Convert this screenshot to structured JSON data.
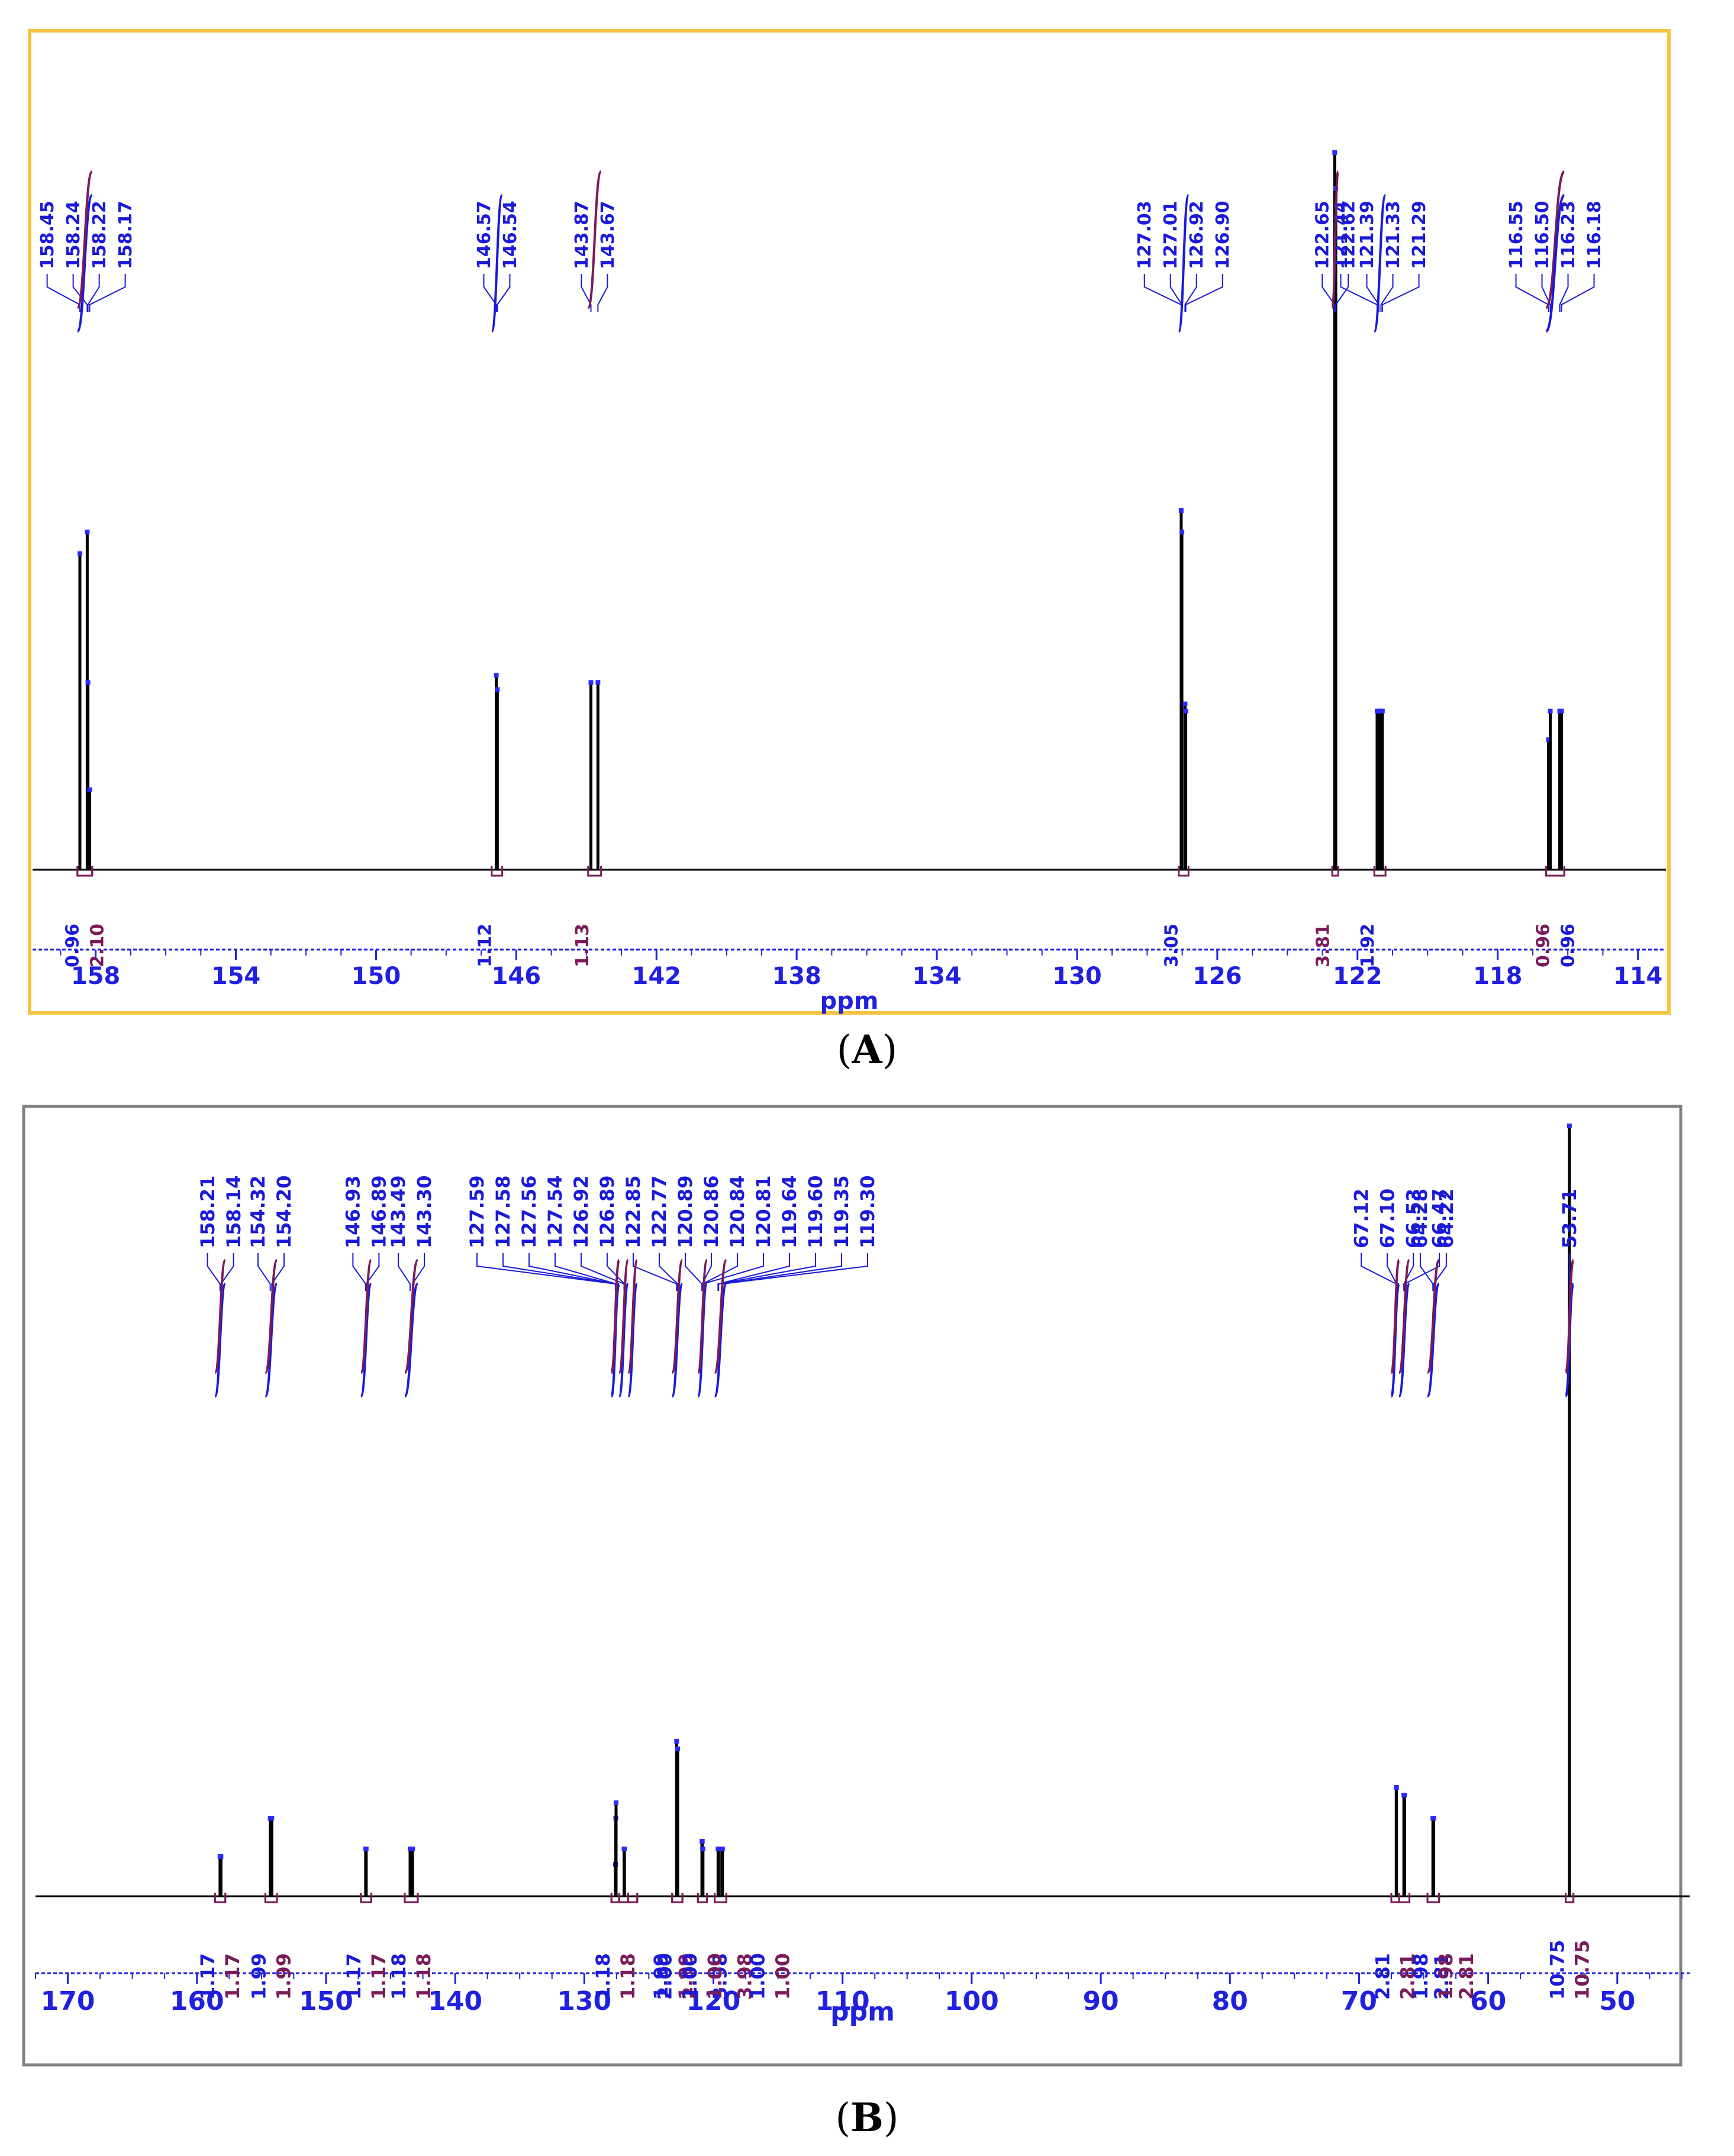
{
  "colors": {
    "frame_a": "#f5c342",
    "frame_b": "#808080",
    "peak": "#000000",
    "peak_top": "#2a2aff",
    "axis": "#2020e0",
    "peak_label": "#1a1ad8",
    "integral": "#7a1a5a",
    "integral_label_blue": "#1a1ad8",
    "baseline": "#000000"
  },
  "captions": {
    "a": "A",
    "b": "B"
  },
  "chart_data": [
    {
      "type": "nmr-spectrum",
      "panel": "A",
      "xlabel": "ppm",
      "xlim": [
        159.8,
        113.2
      ],
      "xticks": [
        158,
        154,
        150,
        146,
        142,
        138,
        134,
        130,
        126,
        122,
        118,
        114
      ],
      "tick_labels": [
        "158",
        "154",
        "150",
        "146",
        "142",
        "138",
        "134",
        "130",
        "126",
        "122",
        "118",
        "114"
      ],
      "peaks": [
        {
          "ppm": 158.45,
          "height": 0.44
        },
        {
          "ppm": 158.24,
          "height": 0.47
        },
        {
          "ppm": 158.22,
          "height": 0.26
        },
        {
          "ppm": 158.17,
          "height": 0.11
        },
        {
          "ppm": 146.57,
          "height": 0.27
        },
        {
          "ppm": 146.54,
          "height": 0.25
        },
        {
          "ppm": 143.87,
          "height": 0.26
        },
        {
          "ppm": 143.67,
          "height": 0.26
        },
        {
          "ppm": 127.03,
          "height": 0.5
        },
        {
          "ppm": 127.01,
          "height": 0.47
        },
        {
          "ppm": 126.92,
          "height": 0.23
        },
        {
          "ppm": 126.9,
          "height": 0.22
        },
        {
          "ppm": 122.65,
          "height": 1.0
        },
        {
          "ppm": 122.62,
          "height": 0.95
        },
        {
          "ppm": 121.44,
          "height": 0.22
        },
        {
          "ppm": 121.39,
          "height": 0.22
        },
        {
          "ppm": 121.33,
          "height": 0.22
        },
        {
          "ppm": 121.29,
          "height": 0.22
        },
        {
          "ppm": 116.55,
          "height": 0.18
        },
        {
          "ppm": 116.5,
          "height": 0.22
        },
        {
          "ppm": 116.23,
          "height": 0.22
        },
        {
          "ppm": 116.18,
          "height": 0.22
        }
      ],
      "peak_label_groups": [
        {
          "labels": [
            "158.45",
            "158.24",
            "158.22",
            "158.17"
          ],
          "ppms": [
            158.45,
            158.24,
            158.22,
            158.17
          ]
        },
        {
          "labels": [
            "146.57",
            "146.54"
          ],
          "ppms": [
            146.57,
            146.54
          ]
        },
        {
          "labels": [
            "143.87",
            "143.67"
          ],
          "ppms": [
            143.87,
            143.67
          ]
        },
        {
          "labels": [
            "127.03",
            "127.01",
            "126.92",
            "126.90"
          ],
          "ppms": [
            127.03,
            127.01,
            126.92,
            126.9
          ]
        },
        {
          "labels": [
            "122.65",
            "122.62"
          ],
          "ppms": [
            122.65,
            122.62
          ]
        },
        {
          "labels": [
            "121.44",
            "121.39",
            "121.33",
            "121.29"
          ],
          "ppms": [
            121.44,
            121.39,
            121.33,
            121.29
          ]
        },
        {
          "labels": [
            "116.55",
            "116.50",
            "116.23",
            "116.18"
          ],
          "ppms": [
            116.55,
            116.5,
            116.23,
            116.18
          ]
        }
      ],
      "integrals": [
        {
          "from": 158.52,
          "to": 158.1,
          "value": 0.96,
          "label": "0.96"
        },
        {
          "from": 158.52,
          "to": 158.1,
          "value": 2.1,
          "label": "2.10"
        },
        {
          "from": 146.7,
          "to": 146.4,
          "value": 1.12,
          "label": "1.12"
        },
        {
          "from": 143.95,
          "to": 143.58,
          "value": 1.13,
          "label": "1.13"
        },
        {
          "from": 127.1,
          "to": 126.82,
          "value": 3.05,
          "label": "3.05"
        },
        {
          "from": 122.72,
          "to": 122.55,
          "value": 3.81,
          "label": "3.81"
        },
        {
          "from": 121.52,
          "to": 121.2,
          "value": 1.92,
          "label": "1.92"
        },
        {
          "from": 116.62,
          "to": 116.1,
          "value": 0.96,
          "label": "0.96"
        },
        {
          "from": 116.62,
          "to": 116.1,
          "value": 0.96,
          "label": "0.96"
        }
      ]
    },
    {
      "type": "nmr-spectrum",
      "panel": "B",
      "xlabel": "ppm",
      "xlim": [
        172.5,
        44.4
      ],
      "xticks": [
        170,
        160,
        150,
        140,
        130,
        120,
        110,
        100,
        90,
        80,
        70,
        60,
        50
      ],
      "tick_labels": [
        "170",
        "160",
        "150",
        "140",
        "130",
        "120",
        "110",
        "100",
        "90",
        "80",
        "70",
        "60",
        "50"
      ],
      "peaks": [
        {
          "ppm": 158.21,
          "height": 0.05
        },
        {
          "ppm": 158.14,
          "height": 0.05
        },
        {
          "ppm": 154.32,
          "height": 0.1
        },
        {
          "ppm": 154.2,
          "height": 0.1
        },
        {
          "ppm": 146.93,
          "height": 0.06
        },
        {
          "ppm": 146.89,
          "height": 0.06
        },
        {
          "ppm": 143.49,
          "height": 0.06
        },
        {
          "ppm": 143.3,
          "height": 0.06
        },
        {
          "ppm": 127.59,
          "height": 0.04
        },
        {
          "ppm": 127.58,
          "height": 0.04
        },
        {
          "ppm": 127.56,
          "height": 0.1
        },
        {
          "ppm": 127.54,
          "height": 0.12
        },
        {
          "ppm": 126.92,
          "height": 0.06
        },
        {
          "ppm": 126.89,
          "height": 0.06
        },
        {
          "ppm": 122.85,
          "height": 0.2
        },
        {
          "ppm": 122.77,
          "height": 0.19
        },
        {
          "ppm": 120.89,
          "height": 0.07
        },
        {
          "ppm": 120.86,
          "height": 0.07
        },
        {
          "ppm": 120.84,
          "height": 0.06
        },
        {
          "ppm": 120.81,
          "height": 0.06
        },
        {
          "ppm": 119.64,
          "height": 0.06
        },
        {
          "ppm": 119.6,
          "height": 0.06
        },
        {
          "ppm": 119.35,
          "height": 0.06
        },
        {
          "ppm": 119.3,
          "height": 0.06
        },
        {
          "ppm": 67.12,
          "height": 0.14
        },
        {
          "ppm": 67.1,
          "height": 0.14
        },
        {
          "ppm": 66.53,
          "height": 0.13
        },
        {
          "ppm": 66.47,
          "height": 0.13
        },
        {
          "ppm": 64.28,
          "height": 0.1
        },
        {
          "ppm": 64.22,
          "height": 0.1
        },
        {
          "ppm": 53.71,
          "height": 1.0
        }
      ],
      "peak_label_groups": [
        {
          "labels": [
            "158.21",
            "158.14"
          ],
          "ppms": [
            158.21,
            158.14
          ]
        },
        {
          "labels": [
            "154.32",
            "154.20"
          ],
          "ppms": [
            154.32,
            154.2
          ]
        },
        {
          "labels": [
            "146.93",
            "146.89"
          ],
          "ppms": [
            146.93,
            146.89
          ]
        },
        {
          "labels": [
            "143.49",
            "143.30"
          ],
          "ppms": [
            143.49,
            143.3
          ]
        },
        {
          "labels": [
            "127.59",
            "127.58",
            "127.56",
            "127.54",
            "126.92",
            "126.89",
            "122.85",
            "122.77",
            "120.89",
            "120.86",
            "120.84",
            "120.81",
            "119.64",
            "119.60",
            "119.35",
            "119.30"
          ],
          "ppms": [
            127.59,
            127.58,
            127.56,
            127.54,
            126.92,
            126.89,
            122.85,
            122.77,
            120.89,
            120.86,
            120.84,
            120.81,
            119.64,
            119.6,
            119.35,
            119.3
          ]
        },
        {
          "labels": [
            "67.12",
            "67.10",
            "66.53",
            "66.47"
          ],
          "ppms": [
            67.12,
            67.1,
            66.53,
            66.47
          ]
        },
        {
          "labels": [
            "64.28",
            "64.22"
          ],
          "ppms": [
            64.28,
            64.22
          ]
        },
        {
          "labels": [
            "53.71"
          ],
          "ppms": [
            53.71
          ]
        }
      ],
      "integrals": [
        {
          "from": 158.6,
          "to": 157.8,
          "value": 1.17,
          "label": "1.17"
        },
        {
          "from": 158.6,
          "to": 157.8,
          "value": 1.17,
          "label": "1.17"
        },
        {
          "from": 154.7,
          "to": 153.8,
          "value": 1.99,
          "label": "1.99"
        },
        {
          "from": 154.7,
          "to": 153.8,
          "value": 1.99,
          "label": "1.99"
        },
        {
          "from": 147.3,
          "to": 146.5,
          "value": 1.17,
          "label": "1.17"
        },
        {
          "from": 147.3,
          "to": 146.5,
          "value": 1.17,
          "label": "1.17"
        },
        {
          "from": 143.9,
          "to": 142.9,
          "value": 1.18,
          "label": "1.18"
        },
        {
          "from": 143.9,
          "to": 142.9,
          "value": 1.18,
          "label": "1.18"
        },
        {
          "from": 127.9,
          "to": 127.3,
          "value": 1.18,
          "label": "1.18"
        },
        {
          "from": 127.9,
          "to": 127.3,
          "value": 1.18,
          "label": "1.18"
        },
        {
          "from": 127.3,
          "to": 126.6,
          "value": 1.99,
          "label": "1.99"
        },
        {
          "from": 127.3,
          "to": 126.6,
          "value": 1.99,
          "label": "1.99"
        },
        {
          "from": 126.6,
          "to": 125.9,
          "value": 3.98,
          "label": "3.98"
        },
        {
          "from": 126.6,
          "to": 125.9,
          "value": 3.98,
          "label": "3.98"
        },
        {
          "from": 123.2,
          "to": 122.4,
          "value": 2.0,
          "label": "2.00"
        },
        {
          "from": 123.2,
          "to": 122.4,
          "value": 2.0,
          "label": "2.00"
        },
        {
          "from": 121.2,
          "to": 120.5,
          "value": 1.0,
          "label": "1.00"
        },
        {
          "from": 121.2,
          "to": 120.5,
          "value": 1.0,
          "label": "1.00"
        },
        {
          "from": 119.9,
          "to": 119.0,
          "value": 1.0,
          "label": "1.00"
        },
        {
          "from": 119.9,
          "to": 119.0,
          "value": 1.0,
          "label": "1.00"
        },
        {
          "from": 67.5,
          "to": 66.9,
          "value": 2.81,
          "label": "2.81"
        },
        {
          "from": 67.5,
          "to": 66.9,
          "value": 2.81,
          "label": "2.81"
        },
        {
          "from": 66.9,
          "to": 66.1,
          "value": 2.81,
          "label": "2.81"
        },
        {
          "from": 66.9,
          "to": 66.1,
          "value": 2.81,
          "label": "2.81"
        },
        {
          "from": 64.7,
          "to": 63.8,
          "value": 1.98,
          "label": "1.98"
        },
        {
          "from": 64.7,
          "to": 63.8,
          "value": 1.98,
          "label": "1.98"
        },
        {
          "from": 54.0,
          "to": 53.4,
          "value": 10.75,
          "label": "10.75"
        },
        {
          "from": 54.0,
          "to": 53.4,
          "value": 10.75,
          "label": "10.75"
        }
      ]
    }
  ]
}
